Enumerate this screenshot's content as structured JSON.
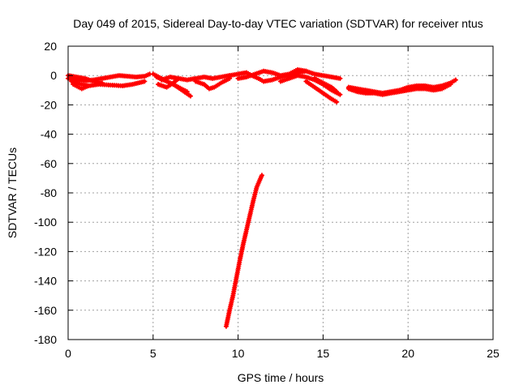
{
  "chart_data": {
    "type": "scatter",
    "title": "Day 049 of 2015, Sidereal Day-to-day VTEC variation (SDTVAR) for receiver ntus",
    "xlabel": "GPS time / hours",
    "ylabel": "SDTVAR / TECUs",
    "xlim": [
      0,
      25
    ],
    "ylim": [
      -180,
      20
    ],
    "xticks": [
      0,
      5,
      10,
      15,
      20,
      25
    ],
    "yticks": [
      20,
      0,
      -20,
      -40,
      -60,
      -80,
      -100,
      -120,
      -140,
      -160,
      -180
    ],
    "grid": true,
    "marker": "plus",
    "series_color": "#ff0000",
    "series": [
      {
        "tracks": [
          [
            [
              0.0,
              -2
            ],
            [
              0.5,
              -3
            ],
            [
              1.0,
              -3.5
            ],
            [
              1.5,
              -3
            ],
            [
              2.0,
              -2
            ],
            [
              2.5,
              -1
            ],
            [
              3.0,
              0
            ],
            [
              3.5,
              -0.5
            ],
            [
              4.0,
              -1
            ],
            [
              4.5,
              -0.5
            ],
            [
              4.8,
              1
            ]
          ],
          [
            [
              0.2,
              -4
            ],
            [
              0.8,
              -6
            ],
            [
              1.2,
              -7
            ],
            [
              1.8,
              -6
            ],
            [
              2.5,
              -6.5
            ],
            [
              3.2,
              -7
            ],
            [
              3.8,
              -6
            ],
            [
              4.5,
              -4
            ]
          ],
          [
            [
              0.0,
              0
            ],
            [
              0.5,
              -1
            ],
            [
              1.0,
              -2
            ],
            [
              1.5,
              -4
            ],
            [
              2.0,
              -5
            ]
          ],
          [
            [
              0.3,
              -6
            ],
            [
              0.8,
              -9
            ],
            [
              1.2,
              -7
            ]
          ],
          [
            [
              5.0,
              1
            ],
            [
              5.5,
              -2
            ],
            [
              6.0,
              -5
            ],
            [
              6.5,
              -8
            ],
            [
              7.0,
              -11
            ]
          ],
          [
            [
              5.2,
              -1
            ],
            [
              5.8,
              -4
            ],
            [
              6.2,
              -6
            ],
            [
              6.7,
              -10
            ],
            [
              7.2,
              -14
            ]
          ],
          [
            [
              5.5,
              -3
            ],
            [
              6.0,
              -1
            ],
            [
              6.5,
              -2
            ],
            [
              7.0,
              -3
            ],
            [
              7.5,
              -2
            ],
            [
              8.0,
              -1
            ],
            [
              8.5,
              -2
            ],
            [
              9.0,
              -1
            ],
            [
              9.5,
              0
            ]
          ],
          [
            [
              5.3,
              -6
            ],
            [
              5.8,
              -8
            ],
            [
              6.2,
              -5
            ],
            [
              6.5,
              -2
            ]
          ],
          [
            [
              7.5,
              -4
            ],
            [
              8.0,
              -6
            ],
            [
              8.3,
              -9
            ],
            [
              8.6,
              -8
            ],
            [
              9.0,
              -5
            ],
            [
              9.5,
              -2
            ]
          ],
          [
            [
              9.5,
              0
            ],
            [
              10.0,
              1
            ],
            [
              10.5,
              2
            ],
            [
              10.8,
              0
            ],
            [
              11.2,
              -2
            ],
            [
              11.5,
              -4
            ],
            [
              12.0,
              -3
            ],
            [
              12.5,
              -1
            ],
            [
              13.0,
              0
            ],
            [
              13.5,
              2
            ],
            [
              14.0,
              3
            ]
          ],
          [
            [
              10.0,
              -2
            ],
            [
              10.5,
              -1
            ],
            [
              11.0,
              1
            ],
            [
              11.5,
              3
            ],
            [
              12.0,
              2
            ],
            [
              12.5,
              0
            ],
            [
              13.0,
              1
            ],
            [
              13.5,
              4
            ],
            [
              14.0,
              3
            ],
            [
              14.5,
              1
            ],
            [
              15.0,
              0
            ],
            [
              15.5,
              -1
            ],
            [
              16.0,
              -2
            ]
          ],
          [
            [
              12.5,
              -4
            ],
            [
              13.0,
              -2
            ],
            [
              13.5,
              0
            ],
            [
              14.0,
              -1
            ],
            [
              14.5,
              -3
            ],
            [
              15.0,
              -6
            ],
            [
              15.5,
              -10
            ],
            [
              16.0,
              -13
            ]
          ],
          [
            [
              14.0,
              -4
            ],
            [
              14.5,
              -8
            ],
            [
              15.0,
              -12
            ],
            [
              15.5,
              -16
            ],
            [
              15.8,
              -18
            ]
          ],
          [
            [
              14.5,
              -2
            ],
            [
              15.0,
              -5
            ],
            [
              15.5,
              -8
            ],
            [
              15.8,
              -11
            ]
          ],
          [
            [
              16.5,
              -8
            ],
            [
              17.0,
              -9
            ],
            [
              17.5,
              -10
            ],
            [
              18.0,
              -11
            ],
            [
              18.5,
              -12
            ],
            [
              19.0,
              -11
            ],
            [
              19.5,
              -10
            ],
            [
              20.0,
              -8
            ],
            [
              20.5,
              -7
            ],
            [
              21.0,
              -7
            ],
            [
              21.5,
              -8
            ],
            [
              22.0,
              -7
            ],
            [
              22.5,
              -5
            ],
            [
              22.8,
              -3
            ]
          ],
          [
            [
              16.5,
              -9
            ],
            [
              17.0,
              -11
            ],
            [
              17.5,
              -12
            ],
            [
              18.0,
              -12
            ],
            [
              18.5,
              -13
            ],
            [
              19.0,
              -12
            ],
            [
              19.5,
              -11
            ],
            [
              20.0,
              -10
            ],
            [
              20.5,
              -9
            ],
            [
              21.0,
              -9
            ],
            [
              21.5,
              -10
            ],
            [
              22.0,
              -9
            ],
            [
              22.5,
              -6
            ]
          ],
          [
            [
              9.3,
              -171
            ],
            [
              9.5,
              -160
            ],
            [
              9.7,
              -150
            ],
            [
              9.9,
              -138
            ],
            [
              10.1,
              -126
            ],
            [
              10.3,
              -115
            ],
            [
              10.5,
              -105
            ],
            [
              10.7,
              -95
            ],
            [
              10.9,
              -85
            ],
            [
              11.1,
              -76
            ],
            [
              11.4,
              -68
            ]
          ]
        ]
      }
    ]
  }
}
